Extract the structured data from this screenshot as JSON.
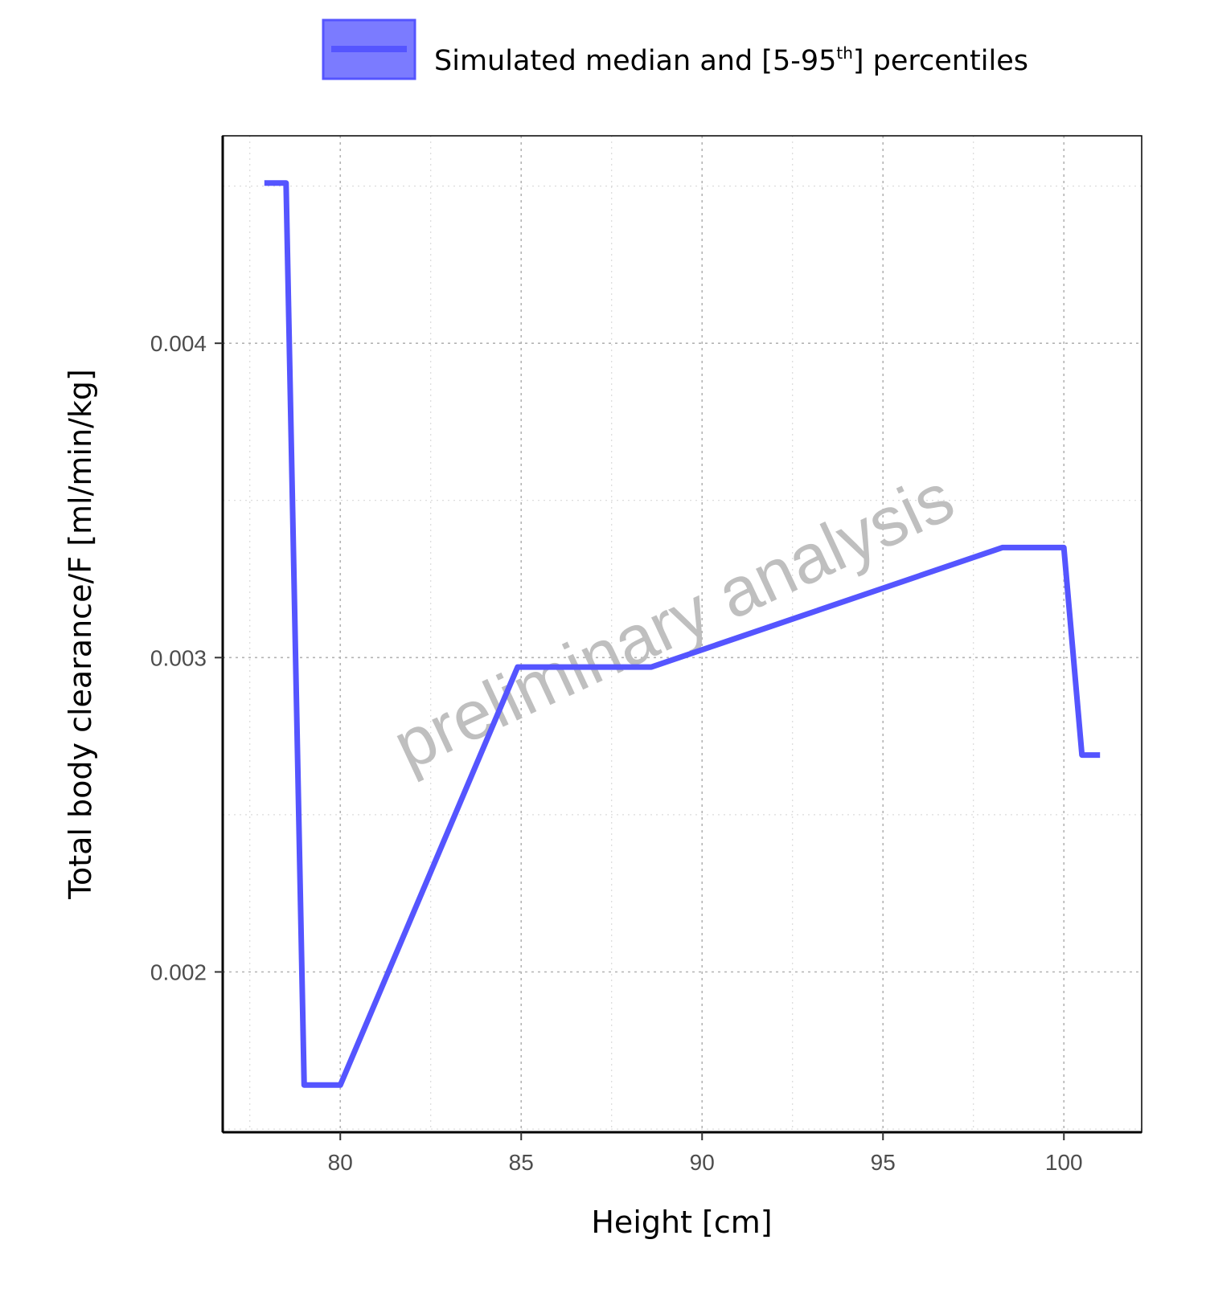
{
  "chart_data": {
    "type": "line",
    "xlabel": "Height [cm]",
    "ylabel": "Total body clearance/F [ml/min/kg]",
    "xlim": [
      76.75,
      102.15
    ],
    "ylim": [
      0.00149,
      0.00466
    ],
    "x_ticks": [
      80,
      85,
      90,
      95,
      100
    ],
    "x_tick_labels": [
      "80",
      "85",
      "90",
      "95",
      "100"
    ],
    "y_ticks": [
      0.002,
      0.003,
      0.004
    ],
    "y_tick_labels": [
      "0.002",
      "0.003",
      "0.004"
    ],
    "grid": true,
    "legend_position": "top",
    "series": [
      {
        "name": "Simulated median and [5-95th] percentiles",
        "color": "#5555ff",
        "x": [
          77.9,
          78.5,
          79.0,
          80.0,
          84.9,
          88.6,
          98.3,
          100.0,
          100.5,
          101.0
        ],
        "y": [
          0.00451,
          0.00451,
          0.00164,
          0.00164,
          0.00297,
          0.00297,
          0.00335,
          0.00335,
          0.00269,
          0.00269
        ]
      }
    ]
  },
  "legend": {
    "label_prefix": "Simulated median and [5-95",
    "label_sup": "th",
    "label_suffix": "] percentiles",
    "swatch_fill": "#7b7bff",
    "swatch_border": "#5555ff"
  },
  "watermark": "preliminary analysis"
}
